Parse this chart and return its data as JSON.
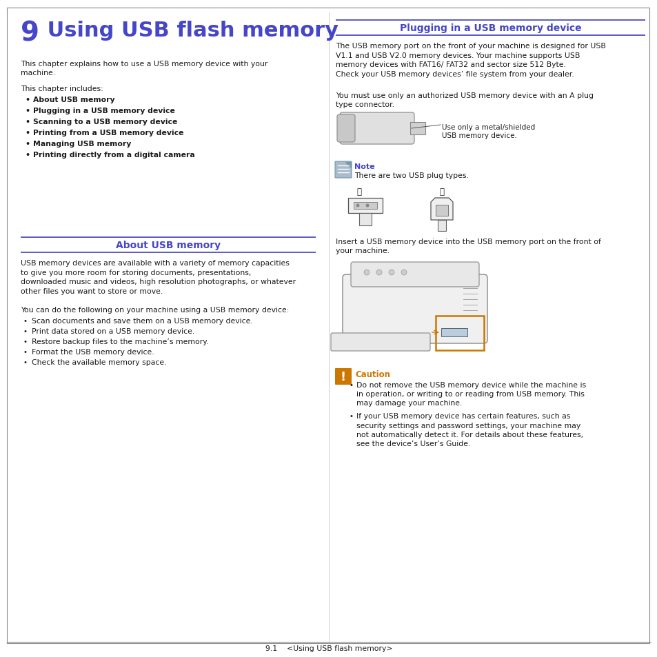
{
  "bg_color": "#ffffff",
  "blue": "#4646c8",
  "black": "#1a1a1a",
  "divblue": "#4040bb",
  "orange": "#cc7700",
  "gray_border": "#aaaaaa",
  "col_sep": "#cccccc",
  "footer_text": "9.1    <Using USB flash memory>",
  "title_num": "9",
  "title_text": " Using USB flash memory",
  "intro1": "This chapter explains how to use a USB memory device with your\nmachine.",
  "intro2": "This chapter includes:",
  "left_bold_bullets": [
    "About USB memory",
    "Plugging in a USB memory device",
    "Scanning to a USB memory device",
    "Printing from a USB memory device",
    "Managing USB memory",
    "Printing directly from a digital camera"
  ],
  "sec1_title": "About USB memory",
  "sec1_p1": "USB memory devices are available with a variety of memory capacities\nto give you more room for storing documents, presentations,\ndownloaded music and videos, high resolution photographs, or whatever\nother files you want to store or move.",
  "sec1_p2": "You can do the following on your machine using a USB memory device:",
  "sec1_bullets": [
    "Scan documents and save them on a USB memory device.",
    "Print data stored on a USB memory device.",
    "Restore backup files to the machine’s memory.",
    "Format the USB memory device.",
    "Check the available memory space."
  ],
  "sec2_title": "Plugging in a USB memory device",
  "sec2_p1": "The USB memory port on the front of your machine is designed for USB\nV1.1 and USB V2.0 memory devices. Your machine supports USB\nmemory devices with FAT16/ FAT32 and sector size 512 Byte.\nCheck your USB memory devices’ file system from your dealer.",
  "sec2_p2": "You must use only an authorized USB memory device with an A plug\ntype connector.",
  "usb_note_label": "Use only a metal/shielded\nUSB memory device.",
  "note_title": "Note",
  "note_body": "There are two USB plug types.",
  "insert_text": "Insert a USB memory device into the USB memory port on the front of\nyour machine.",
  "caution_title": "Caution",
  "caution_b1": "Do not remove the USB memory device while the machine is\nin operation, or writing to or reading from USB memory. This\nmay damage your machine.",
  "caution_b2": "If your USB memory device has certain features, such as\nsecurity settings and password settings, your machine may\nnot automatically detect it. For details about these features,\nsee the device’s User’s Guide."
}
